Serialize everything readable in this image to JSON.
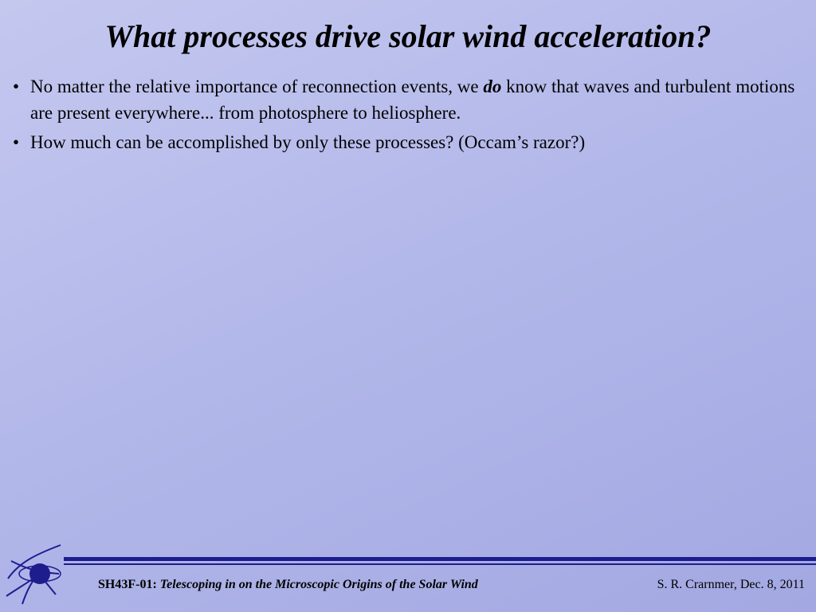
{
  "slide": {
    "title": "What processes drive solar wind acceleration?",
    "bullets": [
      {
        "before": "No matter the relative importance of reconnection events, we ",
        "emphasis": "do",
        "after": " know that waves and turbulent motions are present everywhere... from photosphere to heliosphere."
      },
      {
        "text": "How much can be accomplished by only these processes?   (Occam’s razor?)"
      }
    ]
  },
  "footer": {
    "code": "SH43F-01:",
    "talk_title": "Telescoping in on the Microscopic Origins of the Solar Wind",
    "author_date": "S. R. Crarnmer, Dec. 8, 2011"
  }
}
